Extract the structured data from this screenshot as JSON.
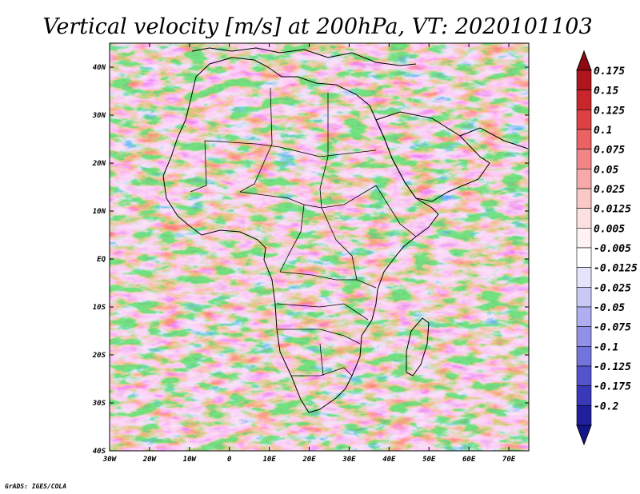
{
  "title": "Vertical velocity [m/s] at 200hPa, VT: 2020101103",
  "credit": "GrADS: IGES/COLA",
  "map": {
    "lon_range": [
      -30,
      75
    ],
    "lat_range": [
      -40,
      45
    ],
    "x_ticks": [
      {
        "value": -30,
        "label": "30W"
      },
      {
        "value": -20,
        "label": "20W"
      },
      {
        "value": -10,
        "label": "10W"
      },
      {
        "value": 0,
        "label": "0"
      },
      {
        "value": 10,
        "label": "10E"
      },
      {
        "value": 20,
        "label": "20E"
      },
      {
        "value": 30,
        "label": "30E"
      },
      {
        "value": 40,
        "label": "40E"
      },
      {
        "value": 50,
        "label": "50E"
      },
      {
        "value": 60,
        "label": "60E"
      },
      {
        "value": 70,
        "label": "70E"
      }
    ],
    "y_ticks": [
      {
        "value": 40,
        "label": "40N"
      },
      {
        "value": 30,
        "label": "30N"
      },
      {
        "value": 20,
        "label": "20N"
      },
      {
        "value": 10,
        "label": "10N"
      },
      {
        "value": 0,
        "label": "EQ"
      },
      {
        "value": -10,
        "label": "10S"
      },
      {
        "value": -20,
        "label": "20S"
      },
      {
        "value": -30,
        "label": "30S"
      },
      {
        "value": -40,
        "label": "40S"
      }
    ]
  },
  "colorbar": {
    "levels": [
      {
        "label": "0.175",
        "color": "#b0141c"
      },
      {
        "label": "0.15",
        "color": "#c8262b"
      },
      {
        "label": "0.125",
        "color": "#dc4040"
      },
      {
        "label": "0.1",
        "color": "#ea6262"
      },
      {
        "label": "0.075",
        "color": "#f28686"
      },
      {
        "label": "0.05",
        "color": "#f7a8a8"
      },
      {
        "label": "0.025",
        "color": "#fbc8c8"
      },
      {
        "label": "0.0125",
        "color": "#fde0e0"
      },
      {
        "label": "0.005",
        "color": "#fff2f2"
      },
      {
        "label": "-0.005",
        "color": "#ffffff"
      },
      {
        "label": "-0.0125",
        "color": "#e4e4fb"
      },
      {
        "label": "-0.025",
        "color": "#c9c9f5"
      },
      {
        "label": "-0.05",
        "color": "#aeaef0"
      },
      {
        "label": "-0.075",
        "color": "#9090e6"
      },
      {
        "label": "-0.1",
        "color": "#7373dc"
      },
      {
        "label": "-0.125",
        "color": "#5454cc"
      },
      {
        "label": "-0.175",
        "color": "#3838b8"
      },
      {
        "label": "-0.2",
        "color": "#20209c"
      }
    ],
    "over_color": "#8c0a12",
    "under_color": "#14148a"
  }
}
